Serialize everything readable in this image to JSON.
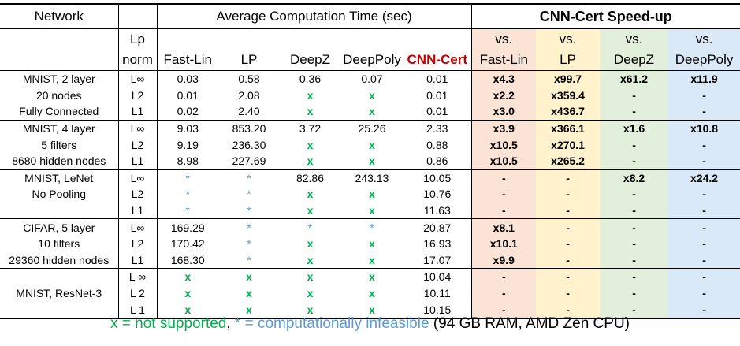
{
  "header": {
    "network": "Network",
    "avg_time": "Average Computation Time (sec)",
    "speedup": "CNN-Cert Speed-up",
    "lp_norm_line1": "Lp",
    "lp_norm_line2": "norm",
    "methods": [
      "Fast-Lin",
      "LP",
      "DeepZ",
      "DeepPoly",
      "CNN-Cert"
    ],
    "vs_word": "vs.",
    "vs_targets": [
      "Fast-Lin",
      "LP",
      "DeepZ",
      "DeepPoly"
    ]
  },
  "groups": [
    {
      "rows": [
        {
          "net": "MNIST, 2 layer",
          "norm": "L∞",
          "times": [
            "0.03",
            "0.58",
            "0.36",
            "0.07",
            "0.01"
          ],
          "speedups": [
            "x4.3",
            "x99.7",
            "x61.2",
            "x11.9"
          ]
        },
        {
          "net": "20 nodes",
          "norm": "L2",
          "times": [
            "0.01",
            "2.08",
            "x",
            "x",
            "0.01"
          ],
          "speedups": [
            "x2.2",
            "x359.4",
            "-",
            "-"
          ]
        },
        {
          "net": "Fully Connected",
          "norm": "L1",
          "times": [
            "0.02",
            "2.40",
            "x",
            "x",
            "0.01"
          ],
          "speedups": [
            "x3.0",
            "x436.7",
            "-",
            "-"
          ]
        }
      ]
    },
    {
      "rows": [
        {
          "net": "MNIST, 4 layer",
          "norm": "L∞",
          "times": [
            "9.03",
            "853.20",
            "3.72",
            "25.26",
            "2.33"
          ],
          "speedups": [
            "x3.9",
            "x366.1",
            "x1.6",
            "x10.8"
          ]
        },
        {
          "net": "5 filters",
          "norm": "L2",
          "times": [
            "9.19",
            "236.30",
            "x",
            "x",
            "0.88"
          ],
          "speedups": [
            "x10.5",
            "x270.1",
            "-",
            "-"
          ]
        },
        {
          "net": "8680 hidden nodes",
          "norm": "L1",
          "times": [
            "8.98",
            "227.69",
            "x",
            "x",
            "0.86"
          ],
          "speedups": [
            "x10.5",
            "x265.2",
            "-",
            "-"
          ]
        }
      ]
    },
    {
      "rows": [
        {
          "net": "MNIST, LeNet",
          "norm": "L∞",
          "times": [
            "*",
            "*",
            "82.86",
            "243.13",
            "10.05"
          ],
          "speedups": [
            "-",
            "-",
            "x8.2",
            "x24.2"
          ]
        },
        {
          "net": "No Pooling",
          "norm": "L2",
          "times": [
            "*",
            "*",
            "x",
            "x",
            "10.76"
          ],
          "speedups": [
            "-",
            "-",
            "-",
            "-"
          ]
        },
        {
          "net": "",
          "norm": "L1",
          "times": [
            "*",
            "*",
            "x",
            "x",
            "11.63"
          ],
          "speedups": [
            "-",
            "-",
            "-",
            "-"
          ]
        }
      ]
    },
    {
      "rows": [
        {
          "net": "CIFAR, 5 layer",
          "norm": "L∞",
          "times": [
            "169.29",
            "*",
            "*",
            "*",
            "20.87"
          ],
          "speedups": [
            "x8.1",
            "-",
            "-",
            "-"
          ]
        },
        {
          "net": "10 filters",
          "norm": "L2",
          "times": [
            "170.42",
            "*",
            "x",
            "x",
            "16.93"
          ],
          "speedups": [
            "x10.1",
            "-",
            "-",
            "-"
          ]
        },
        {
          "net": "29360 hidden nodes",
          "norm": "L1",
          "times": [
            "168.30",
            "*",
            "x",
            "x",
            "17.07"
          ],
          "speedups": [
            "x9.9",
            "-",
            "-",
            "-"
          ]
        }
      ]
    },
    {
      "rows": [
        {
          "net": "",
          "norm": "L ∞",
          "times": [
            "x",
            "x",
            "x",
            "x",
            "10.04"
          ],
          "speedups": [
            "-",
            "-",
            "-",
            "-"
          ]
        },
        {
          "net": "MNIST, ResNet-3",
          "norm": "L 2",
          "times": [
            "x",
            "x",
            "x",
            "x",
            "10.11"
          ],
          "speedups": [
            "-",
            "-",
            "-",
            "-"
          ]
        },
        {
          "net": "",
          "norm": "L 1",
          "times": [
            "x",
            "x",
            "x",
            "x",
            "10.15"
          ],
          "speedups": [
            "-",
            "-",
            "-",
            "-"
          ]
        }
      ]
    }
  ],
  "legend": {
    "not_supported": "x = not supported",
    "sep": ", ",
    "infeasible": "* = computationally infeasible",
    "other": " (94 GB RAM, AMD Zen CPU)"
  },
  "colors": {
    "vs_fastlin": "#fbe3d6",
    "vs_lp": "#fff2cc",
    "vs_deepz": "#e2efda",
    "vs_deeppoly": "#dae9f7",
    "not_supported": "#00b050",
    "infeasible": "#5b9bd5",
    "cnn_cert": "#c00000"
  }
}
